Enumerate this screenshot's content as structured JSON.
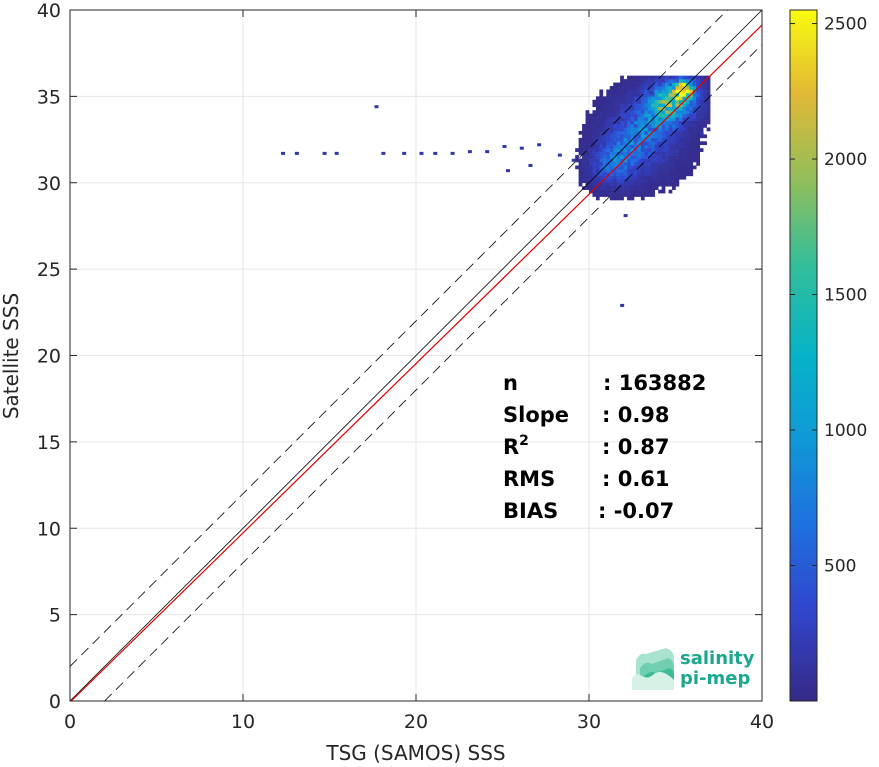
{
  "chart_data": {
    "type": "heatmap",
    "xlabel": "TSG (SAMOS) SSS",
    "ylabel": "Satellite SSS",
    "xlim": [
      0,
      40
    ],
    "ylim": [
      0,
      40
    ],
    "x_ticks": [
      "0",
      "10",
      "20",
      "30",
      "40"
    ],
    "y_ticks": [
      "0",
      "5",
      "10",
      "15",
      "20",
      "25",
      "30",
      "35",
      "40"
    ],
    "grid": true,
    "colorbar": {
      "range": [
        0,
        2550
      ],
      "ticks": [
        "500",
        "1000",
        "1500",
        "2000",
        "2500"
      ],
      "colormap": "parula"
    },
    "reference_lines": [
      {
        "name": "1:1",
        "slope": 1,
        "intercept": 0,
        "color": "#000000",
        "style": "solid"
      },
      {
        "name": "+2",
        "slope": 1,
        "intercept": 2,
        "color": "#000000",
        "style": "dashed"
      },
      {
        "name": "-2",
        "slope": 1,
        "intercept": -2,
        "color": "#000000",
        "style": "dashed"
      },
      {
        "name": "fit",
        "slope": 0.98,
        "intercept": -0.07,
        "color": "#e00000",
        "style": "solid"
      }
    ],
    "density_clusters": [
      {
        "x": 33.0,
        "y": 32.6,
        "sx": 1.6,
        "sy": 1.6,
        "peak": 700
      },
      {
        "x": 34.6,
        "y": 34.6,
        "sx": 1.0,
        "sy": 0.8,
        "peak": 1500
      },
      {
        "x": 35.4,
        "y": 35.3,
        "sx": 0.35,
        "sy": 0.35,
        "peak": 2300
      },
      {
        "x": 31.5,
        "y": 31.0,
        "sx": 0.9,
        "sy": 0.8,
        "peak": 500
      }
    ],
    "outliers": [
      [
        12.2,
        31.7
      ],
      [
        13.0,
        31.7
      ],
      [
        14.6,
        31.7
      ],
      [
        15.3,
        31.7
      ],
      [
        17.6,
        34.4
      ],
      [
        18.0,
        31.7
      ],
      [
        19.2,
        31.7
      ],
      [
        20.2,
        31.7
      ],
      [
        21.0,
        31.7
      ],
      [
        22.0,
        31.7
      ],
      [
        23.0,
        31.8
      ],
      [
        24.0,
        31.8
      ],
      [
        25.0,
        32.1
      ],
      [
        26.0,
        32.0
      ],
      [
        27.0,
        32.2
      ],
      [
        28.2,
        31.6
      ],
      [
        29.0,
        31.3
      ],
      [
        26.5,
        31.0
      ],
      [
        25.2,
        30.7
      ],
      [
        32.0,
        28.1
      ],
      [
        31.8,
        22.9
      ],
      [
        36.4,
        32.8
      ],
      [
        32.3,
        35.3
      ],
      [
        33.5,
        35.2
      ]
    ],
    "stats": [
      {
        "key": "n",
        "value": ": 163882"
      },
      {
        "key": "Slope",
        "value": ": 0.98"
      },
      {
        "key": "R",
        "sup": "2",
        "value": ": 0.87"
      },
      {
        "key": "RMS",
        "value": ": 0.61"
      },
      {
        "key": "BIAS",
        "value": ": -0.07"
      }
    ]
  },
  "logo": {
    "line1": "salinity",
    "line2": "pi-mep"
  }
}
